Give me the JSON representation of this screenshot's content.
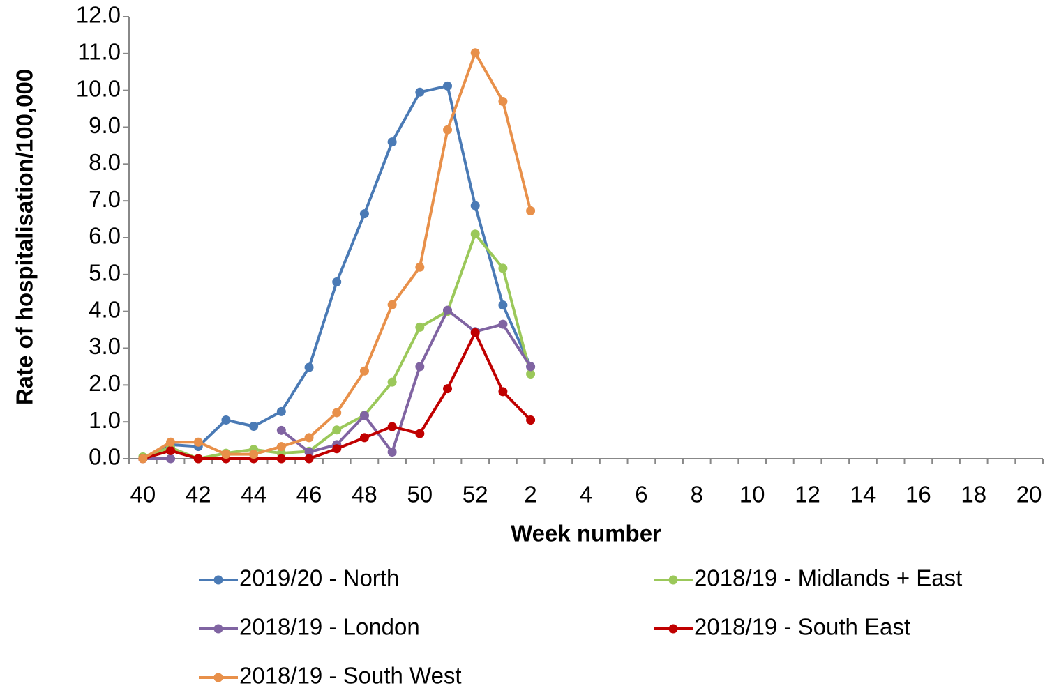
{
  "chart_data": {
    "type": "line",
    "x_label": "Week number",
    "y_label": "Rate of hospitalisation/100,000",
    "categories": [
      "40",
      null,
      "42",
      null,
      "44",
      null,
      "46",
      null,
      "48",
      null,
      "50",
      null,
      "52",
      null,
      "2",
      null,
      "4",
      null,
      "6",
      null,
      "8",
      null,
      "10",
      null,
      "12",
      null,
      "14",
      null,
      "16",
      null,
      "18",
      null,
      "20"
    ],
    "series": [
      {
        "name": "2019/20 - North",
        "color": "#4a7ab5",
        "values": [
          0.0,
          0.38,
          0.33,
          1.05,
          0.88,
          1.28,
          2.48,
          4.8,
          6.65,
          8.6,
          9.95,
          10.12,
          6.87,
          4.17,
          2.5,
          null,
          null,
          null,
          null,
          null,
          null,
          null,
          null,
          null,
          null,
          null,
          null,
          null,
          null,
          null,
          null,
          null,
          null
        ]
      },
      {
        "name": "2018/19 - Midlands + East",
        "color": "#9bc85a",
        "values": [
          0.05,
          0.3,
          0.0,
          0.15,
          0.25,
          0.15,
          0.2,
          0.78,
          1.18,
          2.08,
          3.57,
          4.0,
          6.1,
          5.17,
          2.3,
          null,
          null,
          null,
          null,
          null,
          null,
          null,
          null,
          null,
          null,
          null,
          null,
          null,
          null,
          null,
          null,
          null,
          null
        ]
      },
      {
        "name": "2018/19 - London",
        "color": "#8064a2",
        "values": [
          0.0,
          0.0,
          null,
          null,
          null,
          0.77,
          0.18,
          0.38,
          1.17,
          0.18,
          2.5,
          4.03,
          3.45,
          3.65,
          2.5,
          null,
          null,
          null,
          null,
          null,
          null,
          null,
          null,
          null,
          null,
          null,
          null,
          null,
          null,
          null,
          null,
          null,
          null
        ]
      },
      {
        "name": "2018/19 - South East",
        "color": "#c00000",
        "values": [
          0.0,
          0.22,
          0.0,
          0.0,
          0.0,
          0.0,
          0.0,
          0.27,
          0.57,
          0.87,
          0.68,
          1.9,
          3.42,
          1.82,
          1.05,
          null,
          null,
          null,
          null,
          null,
          null,
          null,
          null,
          null,
          null,
          null,
          null,
          null,
          null,
          null,
          null,
          null,
          null
        ]
      },
      {
        "name": "2018/19 - South West",
        "color": "#e8904a",
        "values": [
          0.0,
          0.45,
          0.45,
          0.12,
          0.12,
          0.33,
          0.57,
          1.25,
          2.38,
          4.18,
          5.2,
          8.93,
          11.02,
          9.7,
          6.73,
          null,
          null,
          null,
          null,
          null,
          null,
          null,
          null,
          null,
          null,
          null,
          null,
          null,
          null,
          null,
          null,
          null,
          null
        ]
      }
    ],
    "ylim": [
      0,
      12
    ],
    "yticks": [
      {
        "value": 0,
        "label": "0.0"
      },
      {
        "value": 1,
        "label": "1.0"
      },
      {
        "value": 2,
        "label": "2.0"
      },
      {
        "value": 3,
        "label": "3.0"
      },
      {
        "value": 4,
        "label": "4.0"
      },
      {
        "value": 5,
        "label": "5.0"
      },
      {
        "value": 6,
        "label": "6.0"
      },
      {
        "value": 7,
        "label": "7.0"
      },
      {
        "value": 8,
        "label": "8.0"
      },
      {
        "value": 9,
        "label": "9.0"
      },
      {
        "value": 10,
        "label": "10.0"
      },
      {
        "value": 11,
        "label": "11.0"
      },
      {
        "value": 12,
        "label": "12.0"
      }
    ],
    "grid": false,
    "legend": "bottom"
  }
}
